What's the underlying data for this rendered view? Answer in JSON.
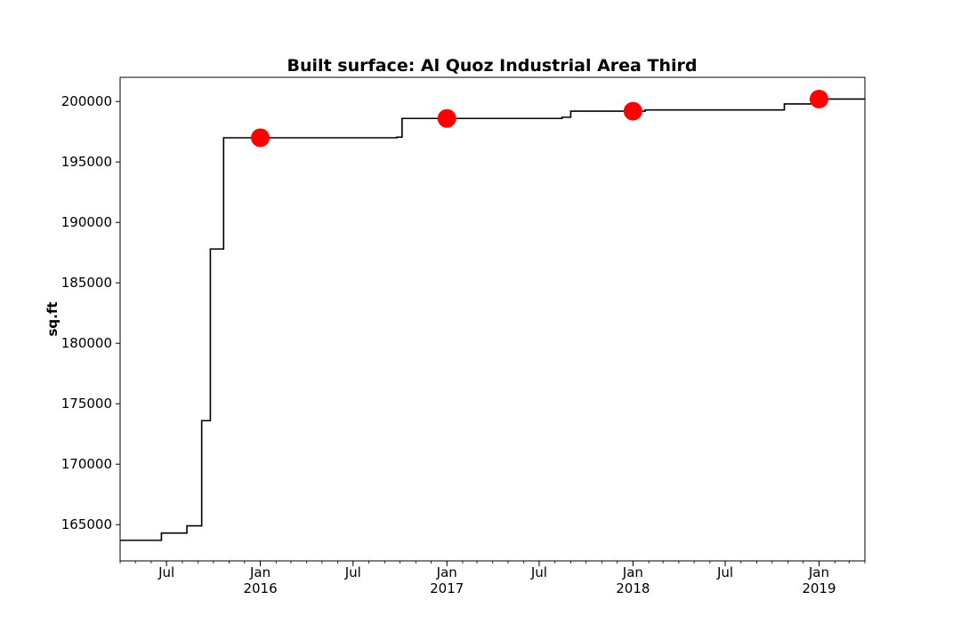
{
  "chart_data": {
    "type": "line",
    "title": "Built surface: Al Quoz Industrial Area Third",
    "xlabel": "",
    "ylabel": "sq.ft",
    "x_axis_type": "date",
    "xlim": [
      "2015-04-01",
      "2019-04-01"
    ],
    "ylim": [
      162000,
      202000
    ],
    "y_ticks": [
      165000,
      170000,
      175000,
      180000,
      185000,
      190000,
      195000,
      200000
    ],
    "x_ticks": [
      {
        "date": "2015-07-01",
        "label": "Jul",
        "sublabel": ""
      },
      {
        "date": "2016-01-01",
        "label": "Jan",
        "sublabel": "2016"
      },
      {
        "date": "2016-07-01",
        "label": "Jul",
        "sublabel": ""
      },
      {
        "date": "2017-01-01",
        "label": "Jan",
        "sublabel": "2017"
      },
      {
        "date": "2017-07-01",
        "label": "Jul",
        "sublabel": ""
      },
      {
        "date": "2018-01-01",
        "label": "Jan",
        "sublabel": "2018"
      },
      {
        "date": "2018-07-01",
        "label": "Jul",
        "sublabel": ""
      },
      {
        "date": "2019-01-01",
        "label": "Jan",
        "sublabel": "2019"
      }
    ],
    "grid": false,
    "series": [
      {
        "style": "step",
        "color": "#000000",
        "points": [
          {
            "x": "2015-04-01",
            "y": 163700
          },
          {
            "x": "2015-06-21",
            "y": 164300
          },
          {
            "x": "2015-08-10",
            "y": 164900
          },
          {
            "x": "2015-09-08",
            "y": 173600
          },
          {
            "x": "2015-09-25",
            "y": 187800
          },
          {
            "x": "2015-10-21",
            "y": 197000
          },
          {
            "x": "2016-09-25",
            "y": 197050
          },
          {
            "x": "2016-10-05",
            "y": 198600
          },
          {
            "x": "2017-08-15",
            "y": 198700
          },
          {
            "x": "2017-09-01",
            "y": 199200
          },
          {
            "x": "2018-01-25",
            "y": 199300
          },
          {
            "x": "2018-10-25",
            "y": 199800
          },
          {
            "x": "2018-12-25",
            "y": 200200
          },
          {
            "x": "2019-04-01",
            "y": 200200
          }
        ]
      },
      {
        "style": "markers",
        "color": "#ff0000",
        "points": [
          {
            "x": "2016-01-01",
            "y": 197000
          },
          {
            "x": "2017-01-01",
            "y": 198600
          },
          {
            "x": "2018-01-01",
            "y": 199200
          },
          {
            "x": "2019-01-01",
            "y": 200200
          }
        ]
      }
    ]
  }
}
